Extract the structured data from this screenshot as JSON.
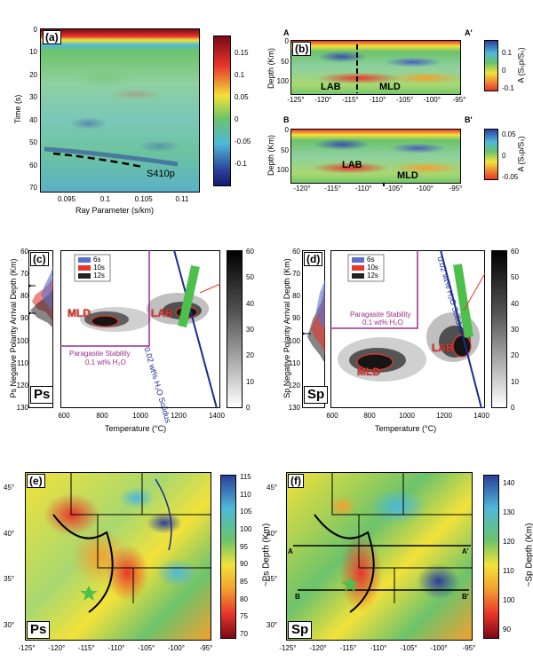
{
  "panel_a": {
    "tag": "(a)",
    "ylabel": "Time (s)",
    "xlabel": "Ray Parameter (s/km)",
    "yticks": [
      "0",
      "10",
      "20",
      "30",
      "40",
      "50",
      "60",
      "70"
    ],
    "xticks": [
      "0.095",
      "0.1",
      "0.105",
      "0.11"
    ],
    "annotation": "S410p",
    "cbar_ticks": [
      "0.15",
      "0.1",
      "0.05",
      "0",
      "-0.05",
      "-0.1"
    ]
  },
  "panel_b": {
    "tag": "(b)",
    "ylabel": "Depth (Km)",
    "left_letter": "A",
    "right_letter": "A'",
    "yticks": [
      "0",
      "50",
      "100"
    ],
    "xticks": [
      "-125°",
      "-120°",
      "-115°",
      "-110°",
      "-105°",
      "-100°",
      "-95°"
    ],
    "label_lab": "LAB",
    "label_mld": "MLD",
    "cbar_ticks": [
      "0.1",
      "0",
      "-0.1"
    ],
    "cbar_label": "A (Sₛp/Sₛ)"
  },
  "panel_b2": {
    "ylabel": "Depth (Km)",
    "left_letter": "B",
    "right_letter": "B'",
    "yticks": [
      "0",
      "50",
      "100"
    ],
    "xticks": [
      "-120°",
      "-115°",
      "-110°",
      "-105°",
      "-100°",
      "-95°"
    ],
    "label_lab": "LAB",
    "label_mld": "MLD",
    "cbar_ticks": [
      "0.05",
      "0",
      "-0.05"
    ],
    "cbar_label": "A (Sₛp/Sₛ)"
  },
  "panel_c": {
    "tag": "(c)",
    "ylabel": "Ps Negative Polarity Arrival Depth (Km)",
    "xlabel": "Temperature (°C)",
    "yticks": [
      "60",
      "70",
      "80",
      "90",
      "100",
      "110",
      "120",
      "130"
    ],
    "xticks": [
      "600",
      "800",
      "1000",
      "1200",
      "1400"
    ],
    "legend": [
      "6s",
      "10s",
      "12s"
    ],
    "mld": "MLD",
    "lab": "LAB",
    "paragasite": "Paragasite Stability",
    "paragasite2": "0.1 wt% H₂O",
    "solidus": "0.02 wt% H₂O Solidus",
    "corner": "Ps",
    "cbar_ticks": [
      "60",
      "50",
      "40",
      "30",
      "20",
      "10",
      "0"
    ]
  },
  "panel_d": {
    "tag": "(d)",
    "ylabel": "Sp Negative Polarity Arrival Depth (Km)",
    "xlabel": "Temperature (°C)",
    "yticks": [
      "60",
      "70",
      "80",
      "90",
      "100",
      "110",
      "120",
      "130"
    ],
    "xticks": [
      "600",
      "800",
      "1000",
      "1200",
      "1400"
    ],
    "legend": [
      "6s",
      "10s",
      "12s"
    ],
    "mld": "MLD",
    "lab": "LAB",
    "paragasite": "Paragasite Stability",
    "paragasite2": "0.1 wt% H₂O",
    "solidus": "0.02 wt% H₂O Solidus",
    "corner": "Sp",
    "cbar_ticks": [
      "60",
      "50",
      "40",
      "30",
      "20",
      "10",
      "0"
    ]
  },
  "panel_e": {
    "tag": "(e)",
    "corner": "Ps",
    "yticks": [
      "45°",
      "40°",
      "35°",
      "30°"
    ],
    "xticks": [
      "-125°",
      "-120°",
      "-115°",
      "-110°",
      "-105°",
      "-100°",
      "-95°"
    ],
    "cbar_ticks": [
      "115",
      "110",
      "105",
      "100",
      "95",
      "90",
      "85",
      "80",
      "75",
      "70"
    ],
    "cbar_label": "~Ps Depth (Km)"
  },
  "panel_f": {
    "tag": "(f)",
    "corner": "Sp",
    "yticks": [
      "45°",
      "40°",
      "35°",
      "30°"
    ],
    "xticks": [
      "-125°",
      "-120°",
      "-115°",
      "-110°",
      "-105°",
      "-100°",
      "-95°"
    ],
    "letters": [
      "A",
      "A'",
      "B",
      "B'"
    ],
    "cbar_ticks": [
      "140",
      "130",
      "120",
      "110",
      "100",
      "90"
    ],
    "cbar_label": "~Sp Depth (Km)"
  },
  "colors": {
    "jet_top": "#7a0a14",
    "jet_red": "#e8362b",
    "jet_yellow": "#f2e23a",
    "jet_green": "#6cc36b",
    "jet_cyan": "#4fb8d8",
    "jet_blue": "#2b3f9a",
    "solidus": "#1d2a8f",
    "paragasite": "#9b2b8f",
    "highlight_green": "#4cc04a"
  }
}
